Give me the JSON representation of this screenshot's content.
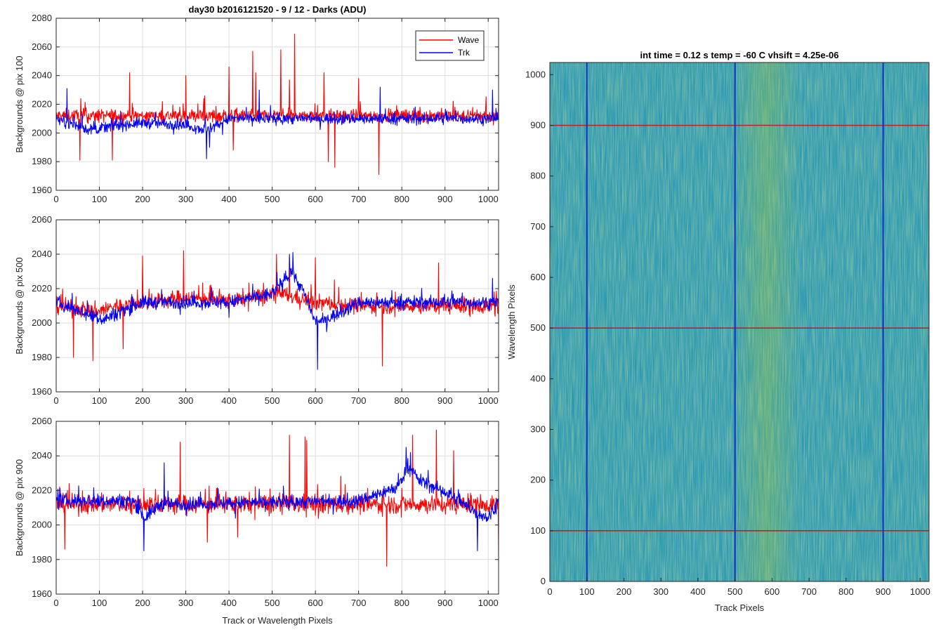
{
  "window": {
    "title": "day30 b2016121520 - 9 / 12 - Darks (ADU)"
  },
  "colors": {
    "wave": "#ff0000",
    "trk": "#0000ff",
    "grid": "#dcdcdc",
    "axis": "#262626",
    "map_base": "#2a9ab0",
    "map_bright": "#a3c83c",
    "map_dark": "#2a6cc0",
    "marker_h": "#c0202a",
    "marker_v": "#1030c8"
  },
  "chart_data": [
    {
      "type": "line",
      "title": "day30 b2016121520 - 9 / 12 - Darks (ADU)",
      "xlabel": "",
      "ylabel": "Backgrounds @ pix 100",
      "xlim": [
        0,
        1024
      ],
      "ylim": [
        1960,
        2080
      ],
      "xticks": [
        0,
        100,
        200,
        300,
        400,
        500,
        600,
        700,
        800,
        900,
        1000
      ],
      "xtick_labels": [
        "0",
        "100",
        "200",
        "300",
        "400",
        "500",
        "600",
        "700",
        "800",
        "900",
        "1000"
      ],
      "yticks": [
        1960,
        1980,
        2000,
        2020,
        2040,
        2060,
        2080
      ],
      "ytick_labels": [
        "1960",
        "1980",
        "2000",
        "2020",
        "2040",
        "2060",
        "2080"
      ],
      "grid": true,
      "legend": {
        "position": "top-right",
        "entries": [
          "Wave",
          "Trk"
        ]
      },
      "series": [
        {
          "name": "Wave",
          "color": "#ff0000",
          "mean": 2012,
          "noise": 6,
          "spikes": [
            [
              170,
              2042
            ],
            [
              300,
              2040
            ],
            [
              400,
              2046
            ],
            [
              455,
              2057
            ],
            [
              462,
              2042
            ],
            [
              520,
              2058
            ],
            [
              552,
              2069
            ],
            [
              620,
              2042
            ],
            [
              645,
              2044
            ],
            [
              747,
              1971
            ],
            [
              630,
              1980
            ],
            [
              645,
              1976
            ],
            [
              130,
              1981
            ],
            [
              55,
              1981
            ],
            [
              410,
              1988
            ],
            [
              540,
              2037
            ],
            [
              700,
              2038
            ]
          ],
          "profile": [
            [
              0,
              0
            ],
            [
              1024,
              0
            ]
          ]
        },
        {
          "name": "Trk",
          "color": "#0000ff",
          "mean": 2010,
          "noise": 5,
          "spikes": [
            [
              348,
              1982
            ],
            [
              355,
              1990
            ],
            [
              750,
              2032
            ],
            [
              25,
              2031
            ],
            [
              470,
              2030
            ],
            [
              1010,
              2030
            ]
          ],
          "profile": [
            [
              0,
              0
            ],
            [
              80,
              -8
            ],
            [
              130,
              -5
            ],
            [
              200,
              -3
            ],
            [
              290,
              -4
            ],
            [
              350,
              -8
            ],
            [
              400,
              0
            ],
            [
              1024,
              0
            ]
          ]
        }
      ]
    },
    {
      "type": "line",
      "xlabel": "",
      "ylabel": "Backgrounds @ pix 500",
      "xlim": [
        0,
        1024
      ],
      "ylim": [
        1960,
        2060
      ],
      "xticks": [
        0,
        100,
        200,
        300,
        400,
        500,
        600,
        700,
        800,
        900,
        1000
      ],
      "xtick_labels": [
        "0",
        "100",
        "200",
        "300",
        "400",
        "500",
        "600",
        "700",
        "800",
        "900",
        "1000"
      ],
      "yticks": [
        1960,
        1980,
        2000,
        2020,
        2040,
        2060
      ],
      "ytick_labels": [
        "1960",
        "1980",
        "2000",
        "2020",
        "2040",
        "2060"
      ],
      "grid": true,
      "series": [
        {
          "name": "Wave",
          "color": "#ff0000",
          "mean": 2010,
          "noise": 6,
          "spikes": [
            [
              295,
              2042
            ],
            [
              200,
              2039
            ],
            [
              40,
              2030
            ],
            [
              510,
              2040
            ],
            [
              540,
              2038
            ],
            [
              600,
              2038
            ],
            [
              885,
              2035
            ],
            [
              40,
              1980
            ],
            [
              85,
              1978
            ],
            [
              755,
              1975
            ],
            [
              155,
              1985
            ]
          ],
          "profile": [
            [
              0,
              0
            ],
            [
              100,
              -3
            ],
            [
              140,
              0
            ],
            [
              300,
              5
            ],
            [
              400,
              3
            ],
            [
              520,
              7
            ],
            [
              600,
              2
            ],
            [
              700,
              0
            ],
            [
              1024,
              0
            ]
          ]
        },
        {
          "name": "Trk",
          "color": "#0000ff",
          "mean": 2012,
          "noise": 5,
          "spikes": [
            [
              540,
              2040
            ],
            [
              548,
              2041
            ],
            [
              605,
              1973
            ],
            [
              1010,
              2026
            ]
          ],
          "profile": [
            [
              0,
              0
            ],
            [
              110,
              -10
            ],
            [
              150,
              -5
            ],
            [
              200,
              0
            ],
            [
              400,
              0
            ],
            [
              500,
              5
            ],
            [
              545,
              18
            ],
            [
              575,
              5
            ],
            [
              600,
              -12
            ],
            [
              640,
              -8
            ],
            [
              700,
              0
            ],
            [
              1024,
              0
            ]
          ]
        }
      ]
    },
    {
      "type": "line",
      "xlabel": "Track or Wavelength Pixels",
      "ylabel": "Backgrounds @ pix 900",
      "xlim": [
        0,
        1024
      ],
      "ylim": [
        1960,
        2060
      ],
      "xticks": [
        0,
        100,
        200,
        300,
        400,
        500,
        600,
        700,
        800,
        900,
        1000
      ],
      "xtick_labels": [
        "0",
        "100",
        "200",
        "300",
        "400",
        "500",
        "600",
        "700",
        "800",
        "900",
        "1000"
      ],
      "yticks": [
        1960,
        1980,
        2000,
        2020,
        2040,
        2060
      ],
      "ytick_labels": [
        "1960",
        "1980",
        "2000",
        "2020",
        "2040",
        "2060"
      ],
      "grid": true,
      "series": [
        {
          "name": "Wave",
          "color": "#ff0000",
          "mean": 2012,
          "noise": 7,
          "spikes": [
            [
              287,
              2048
            ],
            [
              540,
              2052
            ],
            [
              576,
              2051
            ],
            [
              580,
              2049
            ],
            [
              825,
              2052
            ],
            [
              880,
              2055
            ],
            [
              920,
              2043
            ],
            [
              20,
              1986
            ],
            [
              765,
              1976
            ],
            [
              1024,
              1982
            ],
            [
              350,
              1990
            ],
            [
              420,
              1993
            ]
          ],
          "profile": [
            [
              0,
              0
            ],
            [
              1024,
              0
            ]
          ]
        },
        {
          "name": "Trk",
          "color": "#0000ff",
          "mean": 2014,
          "noise": 5,
          "spikes": [
            [
              250,
              2036
            ],
            [
              810,
              2045
            ],
            [
              820,
              2042
            ],
            [
              203,
              1985
            ],
            [
              975,
              1985
            ]
          ],
          "profile": [
            [
              0,
              0
            ],
            [
              180,
              0
            ],
            [
              205,
              -10
            ],
            [
              240,
              -2
            ],
            [
              700,
              0
            ],
            [
              790,
              8
            ],
            [
              815,
              20
            ],
            [
              840,
              12
            ],
            [
              900,
              5
            ],
            [
              960,
              -5
            ],
            [
              1000,
              -10
            ],
            [
              1024,
              0
            ]
          ]
        }
      ]
    },
    {
      "type": "heatmap",
      "title": "int time = 0.12 s    temp = -60 C    vhsift = 4.25e-06",
      "xlabel": "Track Pixels",
      "ylabel": "Wavelength Pixels",
      "xlim": [
        0,
        1024
      ],
      "ylim": [
        0,
        1024
      ],
      "xticks": [
        0,
        100,
        200,
        300,
        400,
        500,
        600,
        700,
        800,
        900,
        1000
      ],
      "xtick_labels": [
        "0",
        "100",
        "200",
        "300",
        "400",
        "500",
        "600",
        "700",
        "800",
        "900",
        "1000"
      ],
      "yticks": [
        0,
        100,
        200,
        300,
        400,
        500,
        600,
        700,
        800,
        900,
        1000
      ],
      "ytick_labels": [
        "0",
        "100",
        "200",
        "300",
        "400",
        "500",
        "600",
        "700",
        "800",
        "900",
        "1000"
      ],
      "grid": false,
      "horizontal_markers": [
        100,
        500,
        900
      ],
      "vertical_markers": [
        100,
        500,
        900
      ],
      "bright_band": [
        510,
        620
      ]
    }
  ]
}
